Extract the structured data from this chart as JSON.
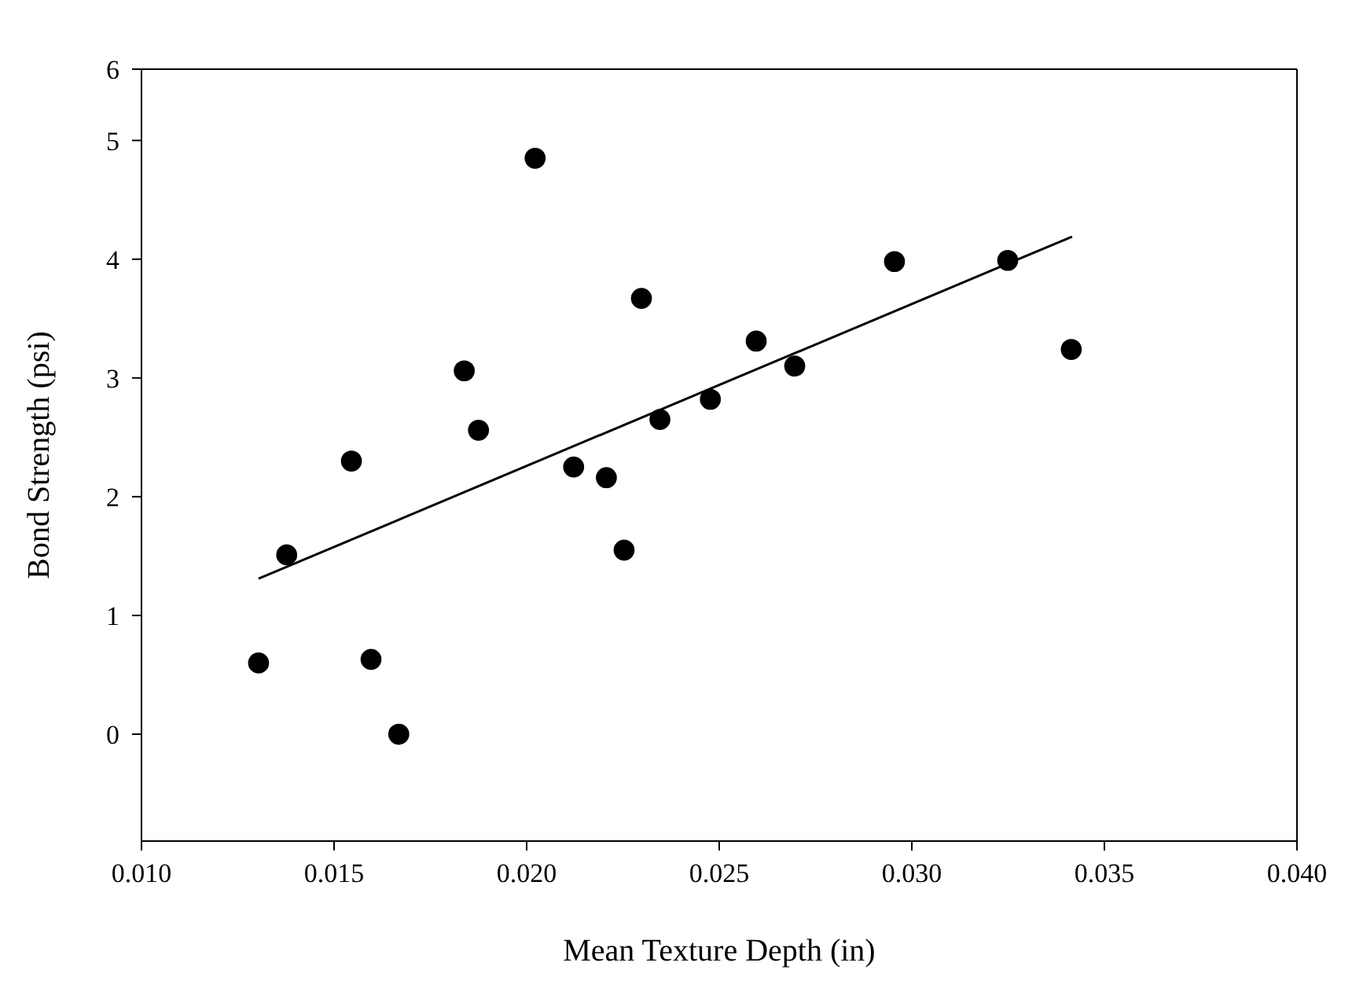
{
  "chart_data": {
    "type": "scatter",
    "xlabel": "Mean Texture Depth (in)",
    "ylabel": "Bond Strength (psi)",
    "xlim": [
      0.01,
      0.04
    ],
    "xticks": [
      {
        "value": 0.01,
        "label": "0.010"
      },
      {
        "value": 0.015,
        "label": "0.015"
      },
      {
        "value": 0.02,
        "label": "0.020"
      },
      {
        "value": 0.025,
        "label": "0.025"
      },
      {
        "value": 0.03,
        "label": "0.030"
      },
      {
        "value": 0.035,
        "label": "0.035"
      },
      {
        "value": 0.04,
        "label": "0.040"
      }
    ],
    "ylim": [
      -0.9,
      5.6
    ],
    "yticks": [
      0,
      1,
      2,
      3,
      4,
      5,
      {
        "value": 5.6,
        "label": "6"
      }
    ],
    "marker": "circle",
    "series": [
      {
        "color": "#000000",
        "x": [
          0.01304,
          0.01377,
          0.01545,
          0.01596,
          0.01668,
          0.01838,
          0.01875,
          0.02022,
          0.02122,
          0.02207,
          0.02253,
          0.02298,
          0.02346,
          0.02477,
          0.02596,
          0.02696,
          0.02955,
          0.03249,
          0.03414
        ],
        "values": [
          0.6,
          1.51,
          2.3,
          0.63,
          0.0,
          3.06,
          2.56,
          4.85,
          2.25,
          2.16,
          1.55,
          3.67,
          2.65,
          2.82,
          3.31,
          3.1,
          3.98,
          3.99,
          3.24
        ]
      },
      {
        "type": "line",
        "color": "#000000",
        "marker": "none",
        "line_style": "solid",
        "x": [
          0.01304,
          0.03416
        ],
        "values": [
          1.31,
          4.19
        ]
      }
    ]
  }
}
